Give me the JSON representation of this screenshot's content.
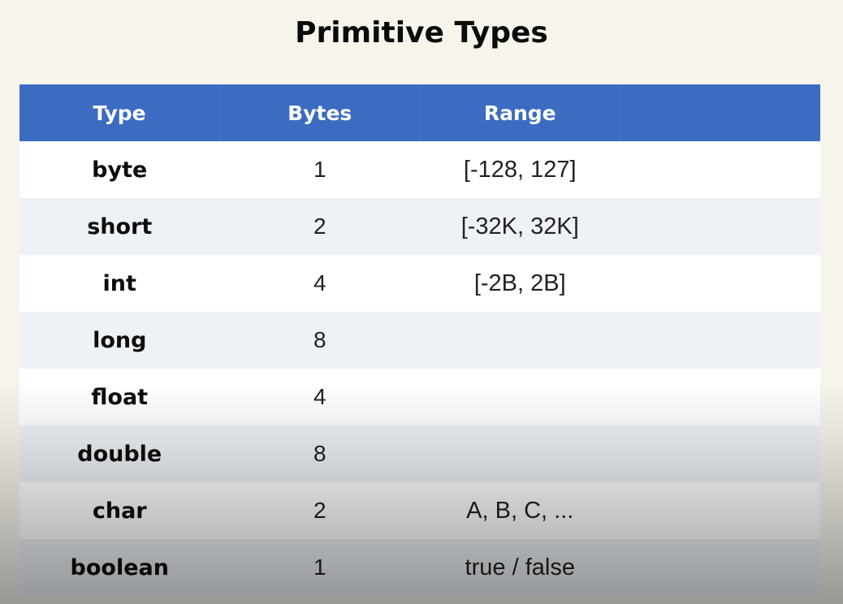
{
  "title": "Primitive Types",
  "table": {
    "headers": [
      "Type",
      "Bytes",
      "Range",
      ""
    ],
    "rows": [
      {
        "type": "byte",
        "bytes": "1",
        "range": "[-128, 127]"
      },
      {
        "type": "short",
        "bytes": "2",
        "range": "[-32K, 32K]"
      },
      {
        "type": "int",
        "bytes": "4",
        "range": "[-2B, 2B]"
      },
      {
        "type": "long",
        "bytes": "8",
        "range": ""
      },
      {
        "type": "float",
        "bytes": "4",
        "range": ""
      },
      {
        "type": "double",
        "bytes": "8",
        "range": ""
      },
      {
        "type": "char",
        "bytes": "2",
        "range": "A, B, C, ..."
      },
      {
        "type": "boolean",
        "bytes": "1",
        "range": "true / false"
      }
    ]
  },
  "colors": {
    "header_bg": "#3b6cc1",
    "row_odd": "#ffffff",
    "row_even": "#eef2f6",
    "page_bg": "#f7f4ec"
  }
}
